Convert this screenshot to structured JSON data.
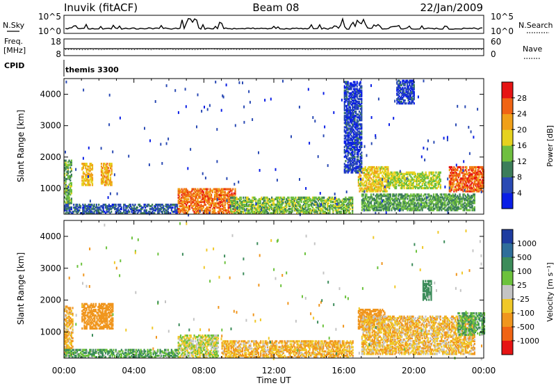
{
  "header": {
    "site": "Inuvik (fitACF)",
    "beam": "Beam 08",
    "date": "22/Jan/2009"
  },
  "noise_panel": {
    "left_label": "N.Sky",
    "right_label": "N.Search",
    "ticks_left": [
      "10^5",
      "10^0"
    ],
    "ticks_right": [
      "10^5",
      "10^0"
    ]
  },
  "freq_panel": {
    "left_label_1": "Freq.",
    "left_label_2": "[MHz]",
    "left_ticks": [
      "18",
      "8"
    ],
    "right_label": "Nave",
    "right_ticks": [
      "60",
      "0"
    ]
  },
  "cpid": {
    "label": "CPID",
    "program": "themis 3300"
  },
  "axes": {
    "x_ticks": [
      "00:00",
      "04:00",
      "08:00",
      "12:00",
      "16:00",
      "20:00",
      "00:00"
    ],
    "x_label": "Time UT",
    "y_label": "Slant Range [km]",
    "y_ticks": [
      "1000",
      "2000",
      "3000",
      "4000"
    ]
  },
  "colorbars": {
    "power": {
      "label": "Power [dB]",
      "ticks": [
        "4",
        "8",
        "12",
        "16",
        "20",
        "24",
        "28"
      ],
      "colors": [
        "#0a1ee6",
        "#2a4ab4",
        "#3c7d5a",
        "#6fbf3f",
        "#e6d21e",
        "#f0a019",
        "#f06414",
        "#e61414"
      ]
    },
    "velocity": {
      "label": "Velocity [m s⁻¹]",
      "ticks": [
        "1000",
        "500",
        "100",
        "25",
        "-25",
        "-100",
        "-500",
        "-1000"
      ],
      "colors": [
        "#1e3ca0",
        "#2f6e9a",
        "#3c8c5a",
        "#6cc23c",
        "#c4c4c4",
        "#f0c828",
        "#f0961e",
        "#f06414",
        "#e61414"
      ]
    }
  },
  "chart_data": [
    {
      "type": "heatmap",
      "title": "Power",
      "xlabel": "Time UT",
      "ylabel": "Slant Range [km]",
      "xlim": [
        0,
        24
      ],
      "ylim": [
        180,
        4500
      ],
      "zlabel": "Power [dB]",
      "zlim": [
        0,
        30
      ],
      "blobs": [
        {
          "t": [
            0.0,
            0.4
          ],
          "r": [
            300,
            1900
          ],
          "level": 13
        },
        {
          "t": [
            1.0,
            1.6
          ],
          "r": [
            1100,
            1800
          ],
          "level": 20
        },
        {
          "t": [
            2.1,
            2.7
          ],
          "r": [
            1100,
            1800
          ],
          "level": 21
        },
        {
          "t": [
            0.0,
            6.5
          ],
          "r": [
            200,
            500
          ],
          "level": 7
        },
        {
          "t": [
            6.5,
            9.8
          ],
          "r": [
            200,
            1000
          ],
          "level": 25
        },
        {
          "t": [
            9.5,
            16.5
          ],
          "r": [
            200,
            700
          ],
          "level": 14
        },
        {
          "t": [
            16.8,
            18.5
          ],
          "r": [
            900,
            1700
          ],
          "level": 19
        },
        {
          "t": [
            17.0,
            23.5
          ],
          "r": [
            300,
            800
          ],
          "level": 12
        },
        {
          "t": [
            18.5,
            21.5
          ],
          "r": [
            1000,
            1500
          ],
          "level": 16
        },
        {
          "t": [
            22.0,
            24.0
          ],
          "r": [
            900,
            1700
          ],
          "level": 26
        },
        {
          "t": [
            16.0,
            17.0
          ],
          "r": [
            1500,
            4400
          ],
          "level": 5
        },
        {
          "t": [
            19.0,
            20.0
          ],
          "r": [
            3700,
            4450
          ],
          "level": 5
        }
      ]
    },
    {
      "type": "heatmap",
      "title": "Velocity",
      "xlabel": "Time UT",
      "ylabel": "Slant Range [km]",
      "xlim": [
        0,
        24
      ],
      "ylim": [
        180,
        4500
      ],
      "zlabel": "Velocity [m s⁻¹]",
      "zlim": [
        -1000,
        1000
      ],
      "blobs": [
        {
          "t": [
            0.0,
            0.5
          ],
          "r": [
            300,
            1800
          ],
          "level": -100
        },
        {
          "t": [
            1.0,
            2.8
          ],
          "r": [
            1100,
            1900
          ],
          "level": -200
        },
        {
          "t": [
            0.0,
            6.5
          ],
          "r": [
            200,
            450
          ],
          "level": 100
        },
        {
          "t": [
            6.5,
            8.8
          ],
          "r": [
            200,
            900
          ],
          "level": 0
        },
        {
          "t": [
            9.0,
            16.5
          ],
          "r": [
            200,
            700
          ],
          "level": -100
        },
        {
          "t": [
            16.8,
            18.3
          ],
          "r": [
            1100,
            1700
          ],
          "level": -200
        },
        {
          "t": [
            17.0,
            23.5
          ],
          "r": [
            300,
            1500
          ],
          "level": -80
        },
        {
          "t": [
            22.5,
            24.0
          ],
          "r": [
            900,
            1600
          ],
          "level": 100
        },
        {
          "t": [
            20.5,
            21.0
          ],
          "r": [
            2000,
            2600
          ],
          "level": 200
        }
      ]
    }
  ]
}
